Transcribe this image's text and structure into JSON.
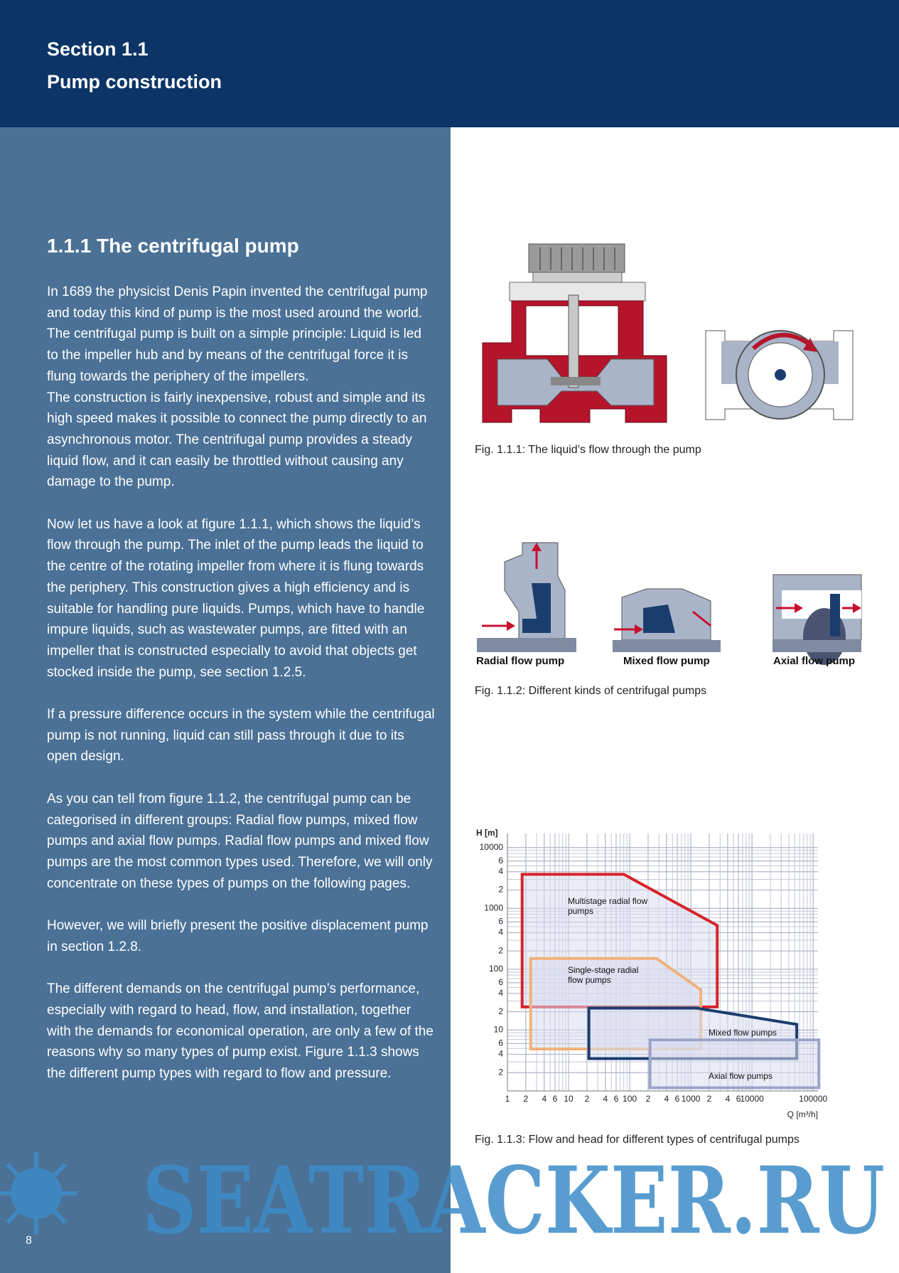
{
  "header": {
    "section": "Section 1.1",
    "title": "Pump construction"
  },
  "article": {
    "heading": "1.1.1 The centrifugal pump",
    "paragraphs": [
      [
        "In 1689 the physicist Denis Papin invented the centrifugal pump and today this kind of pump is the most used around the world. The centrifugal pump is built on a simple principle: Liquid is led to the impeller hub and by means of the centrifugal force it is flung towards the periphery of the impellers.",
        "The construction is fairly inexpensive, robust and simple and its high speed makes it possible to connect the pump directly to an asynchronous motor. The centrifugal pump provides a steady liquid flow, and it can easily be throttled without causing any damage to the pump."
      ],
      [
        "Now let us have a look at figure 1.1.1, which shows the liquid’s flow through the pump. The inlet of the pump leads the liquid to the centre of the rotating impeller from where it is flung towards the periphery. This construction gives a high efficiency and is suitable for handling pure liquids. Pumps, which have to handle impure liquids, such as wastewater pumps, are fitted with an impeller that is constructed especially to avoid that objects get stocked inside the pump, see section 1.2.5."
      ],
      [
        "If a pressure difference occurs in the system while the centrifugal pump is not running, liquid can still pass through it due to its open design."
      ],
      [
        "As you can tell from figure 1.1.2, the centrifugal pump can be categorised in different groups: Radial flow pumps, mixed flow pumps and axial flow pumps. Radial flow pumps and mixed flow pumps are the most common types used. Therefore, we will only concentrate on these types of pumps on the following pages."
      ],
      [
        "However, we will briefly present the positive displacement pump in section 1.2.8."
      ],
      [
        "The different demands on the centrifugal pump’s performance, especially with regard to head, flow, and installation, together with the demands for economical operation, are only a few of the reasons why so many types of pump exist. Figure 1.1.3 shows the different pump types with regard to flow and pressure."
      ]
    ]
  },
  "figures": [
    {
      "caption": "Fig. 1.1.1: The liquid’s flow through the pump"
    },
    {
      "labels": [
        "Radial flow pump",
        "Mixed flow pump",
        "Axial flow pump"
      ],
      "caption": "Fig. 1.1.2: Different kinds of centrifugal pumps"
    },
    {
      "caption": "Fig. 1.1.3: Flow and head for different types of centrifugal pumps",
      "chart_data": {
        "type": "region",
        "xlabel": "Q [m³/h]",
        "ylabel": "H [m]",
        "x_scale": "log",
        "y_scale": "log",
        "grid": true,
        "xlim": [
          1,
          120000
        ],
        "ylim": [
          1,
          17000
        ],
        "xticks": [
          1,
          2,
          4,
          6,
          10,
          {
            "value": 20,
            "label": "2"
          },
          {
            "value": 40,
            "label": "4"
          },
          {
            "value": 60,
            "label": "6"
          },
          100,
          {
            "value": 200,
            "label": "2"
          },
          {
            "value": 400,
            "label": "4"
          },
          {
            "value": 600,
            "label": "6"
          },
          1000,
          {
            "value": 2000,
            "label": "2"
          },
          {
            "value": 4000,
            "label": "4"
          },
          {
            "value": 6000,
            "label": "6"
          },
          10000,
          100000
        ],
        "yticks": [
          10000,
          {
            "value": 6000,
            "label": "6"
          },
          {
            "value": 4000,
            "label": "4"
          },
          {
            "value": 2000,
            "label": "2"
          },
          1000,
          {
            "value": 600,
            "label": "6"
          },
          {
            "value": 400,
            "label": "4"
          },
          {
            "value": 200,
            "label": "2"
          },
          100,
          {
            "value": 60,
            "label": "6"
          },
          {
            "value": 40,
            "label": "4"
          },
          {
            "value": 20,
            "label": "2"
          },
          10,
          6,
          4,
          2
        ],
        "series": [
          {
            "name": "Multistage radial flow pumps",
            "color": "#d8232a",
            "x": [
              1.74,
              1.74,
              80,
              2700,
              2700
            ],
            "values": [
              24,
              3630,
              3630,
              525,
              24
            ]
          },
          {
            "name": "Single-stage radial flow pumps",
            "color": "#f0b27a",
            "x": [
              2.4,
              2.4,
              275,
              1450,
              1450
            ],
            "values": [
              4.9,
              150,
              150,
              46,
              4.9
            ]
          },
          {
            "name": "Mixed flow pumps",
            "color": "#1b3d6e",
            "x": [
              21.5,
              21.5,
              1240,
              54000,
              54000
            ],
            "values": [
              3.4,
              23,
              23,
              12.4,
              3.4
            ]
          },
          {
            "name": "Axial flow pumps",
            "color": "#9aa3c8",
            "x": [
              215,
              215,
              124000,
              124000
            ],
            "values": [
              1.13,
              6.9,
              6.9,
              1.13
            ]
          }
        ]
      }
    }
  ],
  "page_number": "8",
  "watermark": "SEATRACKER.RU"
}
